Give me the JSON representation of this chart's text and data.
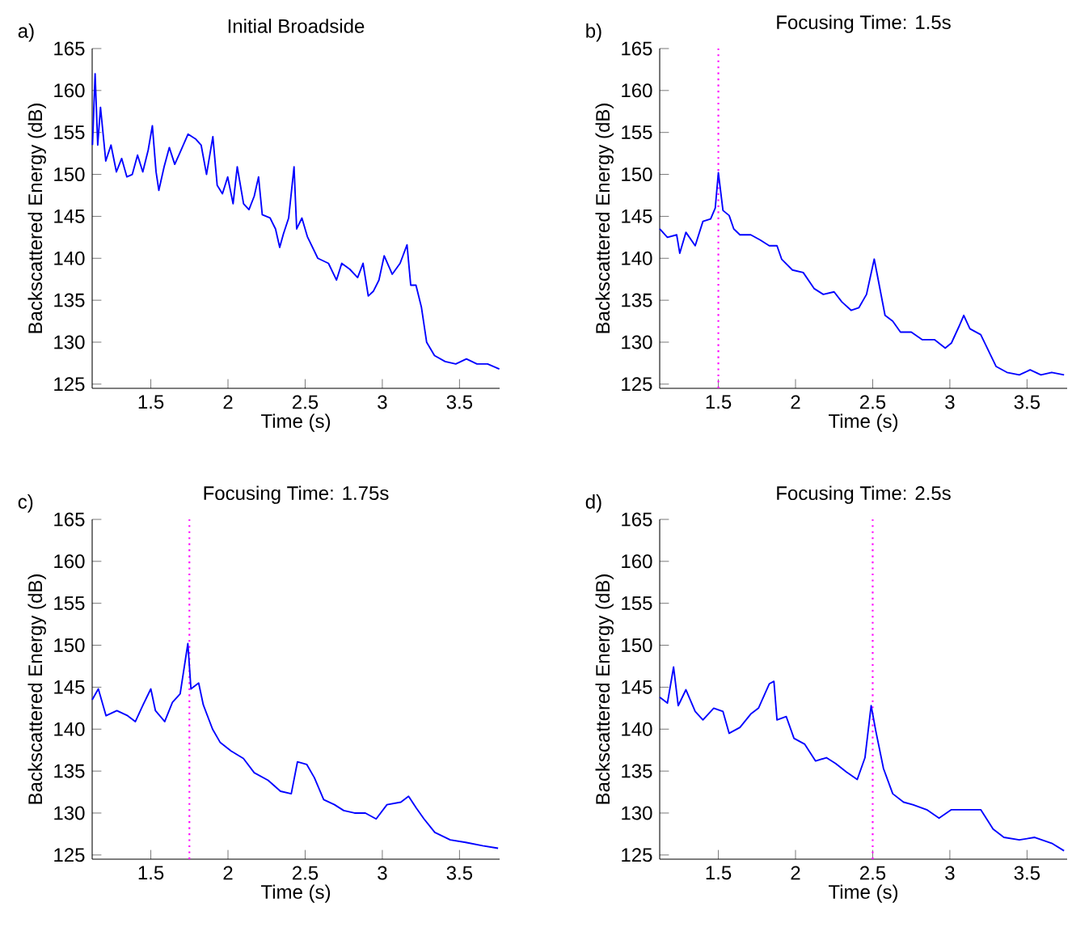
{
  "chart_data": [
    {
      "type": "line",
      "title": "Initial Broadside",
      "xlabel": "Time (s)",
      "ylabel": "Backscattered Energy (dB)",
      "annotations": [
        "a)"
      ],
      "xlim": [
        1.12,
        3.76
      ],
      "ylim": [
        124.5,
        165
      ],
      "xticks": [
        1.5,
        2,
        2.5,
        3,
        3.5
      ],
      "yticks": [
        125,
        130,
        135,
        140,
        145,
        150,
        155,
        160,
        165
      ],
      "series": [
        {
          "color": "#0000ff",
          "x": [
            1.122,
            1.139,
            1.156,
            1.174,
            1.208,
            1.242,
            1.277,
            1.311,
            1.345,
            1.38,
            1.414,
            1.448,
            1.483,
            1.51,
            1.534,
            1.552,
            1.586,
            1.62,
            1.655,
            1.689,
            1.741,
            1.792,
            1.826,
            1.861,
            1.902,
            1.93,
            1.964,
            1.998,
            2.033,
            2.06,
            2.101,
            2.136,
            2.17,
            2.198,
            2.222,
            2.273,
            2.308,
            2.335,
            2.359,
            2.393,
            2.428,
            2.445,
            2.479,
            2.514,
            2.582,
            2.651,
            2.703,
            2.737,
            2.789,
            2.84,
            2.875,
            2.909,
            2.943,
            2.978,
            3.012,
            3.064,
            3.115,
            3.16,
            3.184,
            3.218,
            3.253,
            3.287,
            3.338,
            3.407,
            3.476,
            3.545,
            3.613,
            3.682,
            3.758
          ],
          "values": [
            153.5,
            162,
            153.5,
            158,
            151.6,
            153.5,
            150.3,
            151.9,
            149.7,
            150,
            152.3,
            150.3,
            152.9,
            155.8,
            150.3,
            148.1,
            150.9,
            153.2,
            151.2,
            152.6,
            154.8,
            154.2,
            153.5,
            150,
            154.5,
            148.7,
            147.7,
            149.7,
            146.5,
            150.9,
            146.5,
            145.8,
            147.4,
            149.7,
            145.2,
            144.8,
            143.5,
            141.3,
            142.9,
            144.8,
            150.9,
            143.5,
            144.8,
            142.6,
            140,
            139.4,
            137.4,
            139.4,
            138.7,
            137.7,
            139.4,
            135.5,
            136.1,
            137.4,
            140.3,
            138.1,
            139.4,
            141.6,
            136.8,
            136.8,
            134.2,
            130,
            128.4,
            127.7,
            127.4,
            128,
            127.4,
            127.4,
            126.8
          ]
        }
      ]
    },
    {
      "type": "line",
      "title": "Focusing Time: 1.5s",
      "xlabel": "Time (s)",
      "ylabel": "Backscattered Energy (dB)",
      "annotations": [
        "b)"
      ],
      "xlim": [
        1.12,
        3.76
      ],
      "ylim": [
        124.5,
        165
      ],
      "xticks": [
        1.5,
        2,
        2.5,
        3,
        3.5
      ],
      "yticks": [
        125,
        130,
        135,
        140,
        145,
        150,
        155,
        160,
        165
      ],
      "ref_lines": [
        {
          "axis": "x",
          "value": 1.5,
          "color": "#ff00ff",
          "line_style": "dotted"
        }
      ],
      "series": [
        {
          "color": "#0000ff",
          "x": [
            1.12,
            1.17,
            1.23,
            1.25,
            1.29,
            1.35,
            1.4,
            1.45,
            1.48,
            1.5,
            1.53,
            1.57,
            1.6,
            1.64,
            1.71,
            1.77,
            1.83,
            1.88,
            1.91,
            1.98,
            2.05,
            2.12,
            2.18,
            2.25,
            2.3,
            2.36,
            2.41,
            2.46,
            2.51,
            2.53,
            2.58,
            2.63,
            2.68,
            2.75,
            2.82,
            2.9,
            2.97,
            3.01,
            3.06,
            3.09,
            3.13,
            3.2,
            3.25,
            3.3,
            3.37,
            3.45,
            3.52,
            3.59,
            3.66,
            3.74
          ],
          "values": [
            143.5,
            142.5,
            142.8,
            140.6,
            143.1,
            141.5,
            144.4,
            144.7,
            146,
            150.2,
            145.7,
            145.1,
            143.5,
            142.8,
            142.8,
            142.2,
            141.5,
            141.5,
            139.9,
            138.6,
            138.3,
            136.4,
            135.7,
            136,
            134.8,
            133.8,
            134.1,
            135.7,
            139.9,
            138,
            133.2,
            132.5,
            131.2,
            131.2,
            130.3,
            130.3,
            129.3,
            129.9,
            131.9,
            133.2,
            131.6,
            130.9,
            129,
            127.1,
            126.4,
            126.1,
            126.7,
            126.1,
            126.4,
            126.1
          ]
        }
      ]
    },
    {
      "type": "line",
      "title": "Focusing Time: 1.75s",
      "xlabel": "Time (s)",
      "ylabel": "Backscattered Energy (dB)",
      "annotations": [
        "c)"
      ],
      "xlim": [
        1.12,
        3.76
      ],
      "ylim": [
        124.5,
        165
      ],
      "xticks": [
        1.5,
        2,
        2.5,
        3,
        3.5
      ],
      "yticks": [
        125,
        130,
        135,
        140,
        145,
        150,
        155,
        160,
        165
      ],
      "ref_lines": [
        {
          "axis": "x",
          "value": 1.75,
          "color": "#ff00ff",
          "line_style": "dotted"
        }
      ],
      "series": [
        {
          "color": "#0000ff",
          "x": [
            1.12,
            1.16,
            1.21,
            1.28,
            1.35,
            1.4,
            1.45,
            1.5,
            1.53,
            1.59,
            1.64,
            1.69,
            1.74,
            1.76,
            1.81,
            1.84,
            1.9,
            1.95,
            2.02,
            2.1,
            2.17,
            2.26,
            2.34,
            2.41,
            2.45,
            2.51,
            2.56,
            2.62,
            2.69,
            2.75,
            2.82,
            2.89,
            2.96,
            3.03,
            3.12,
            3.17,
            3.22,
            3.27,
            3.34,
            3.44,
            3.54,
            3.65,
            3.75
          ],
          "values": [
            143.5,
            144.8,
            141.6,
            142.2,
            141.6,
            140.9,
            142.9,
            144.8,
            142.2,
            140.9,
            143.2,
            144.2,
            150.2,
            144.8,
            145.5,
            142.9,
            140,
            138.4,
            137.4,
            136.5,
            134.8,
            133.9,
            132.6,
            132.3,
            136.1,
            135.8,
            134.2,
            131.6,
            131,
            130.3,
            130,
            130,
            129.3,
            131,
            131.3,
            132,
            130.6,
            129.3,
            127.7,
            126.8,
            126.5,
            126.1,
            125.8
          ]
        }
      ]
    },
    {
      "type": "line",
      "title": "Focusing Time: 2.5s",
      "xlabel": "Time (s)",
      "ylabel": "Backscattered Energy (dB)",
      "annotations": [
        "d)"
      ],
      "xlim": [
        1.12,
        3.76
      ],
      "ylim": [
        124.5,
        165
      ],
      "xticks": [
        1.5,
        2,
        2.5,
        3,
        3.5
      ],
      "yticks": [
        125,
        130,
        135,
        140,
        145,
        150,
        155,
        160,
        165
      ],
      "ref_lines": [
        {
          "axis": "x",
          "value": 2.5,
          "color": "#ff00ff",
          "line_style": "dotted"
        }
      ],
      "series": [
        {
          "color": "#0000ff",
          "x": [
            1.12,
            1.17,
            1.21,
            1.24,
            1.29,
            1.35,
            1.4,
            1.47,
            1.53,
            1.57,
            1.64,
            1.71,
            1.76,
            1.83,
            1.86,
            1.88,
            1.94,
            1.99,
            2.06,
            2.13,
            2.2,
            2.26,
            2.33,
            2.4,
            2.45,
            2.49,
            2.52,
            2.57,
            2.63,
            2.7,
            2.76,
            2.85,
            2.93,
            3.01,
            3.09,
            3.2,
            3.28,
            3.35,
            3.45,
            3.55,
            3.66,
            3.74
          ],
          "values": [
            143.8,
            143.1,
            147.4,
            142.8,
            144.7,
            142.1,
            141.1,
            142.5,
            142.1,
            139.5,
            140.2,
            141.8,
            142.5,
            145.4,
            145.7,
            141.1,
            141.5,
            138.9,
            138.2,
            136.2,
            136.6,
            135.9,
            134.9,
            134,
            136.6,
            142.8,
            139.8,
            135.3,
            132.3,
            131.3,
            131,
            130.4,
            129.4,
            130.4,
            130.4,
            130.4,
            128.1,
            127.1,
            126.8,
            127.1,
            126.4,
            125.5
          ]
        }
      ]
    }
  ]
}
